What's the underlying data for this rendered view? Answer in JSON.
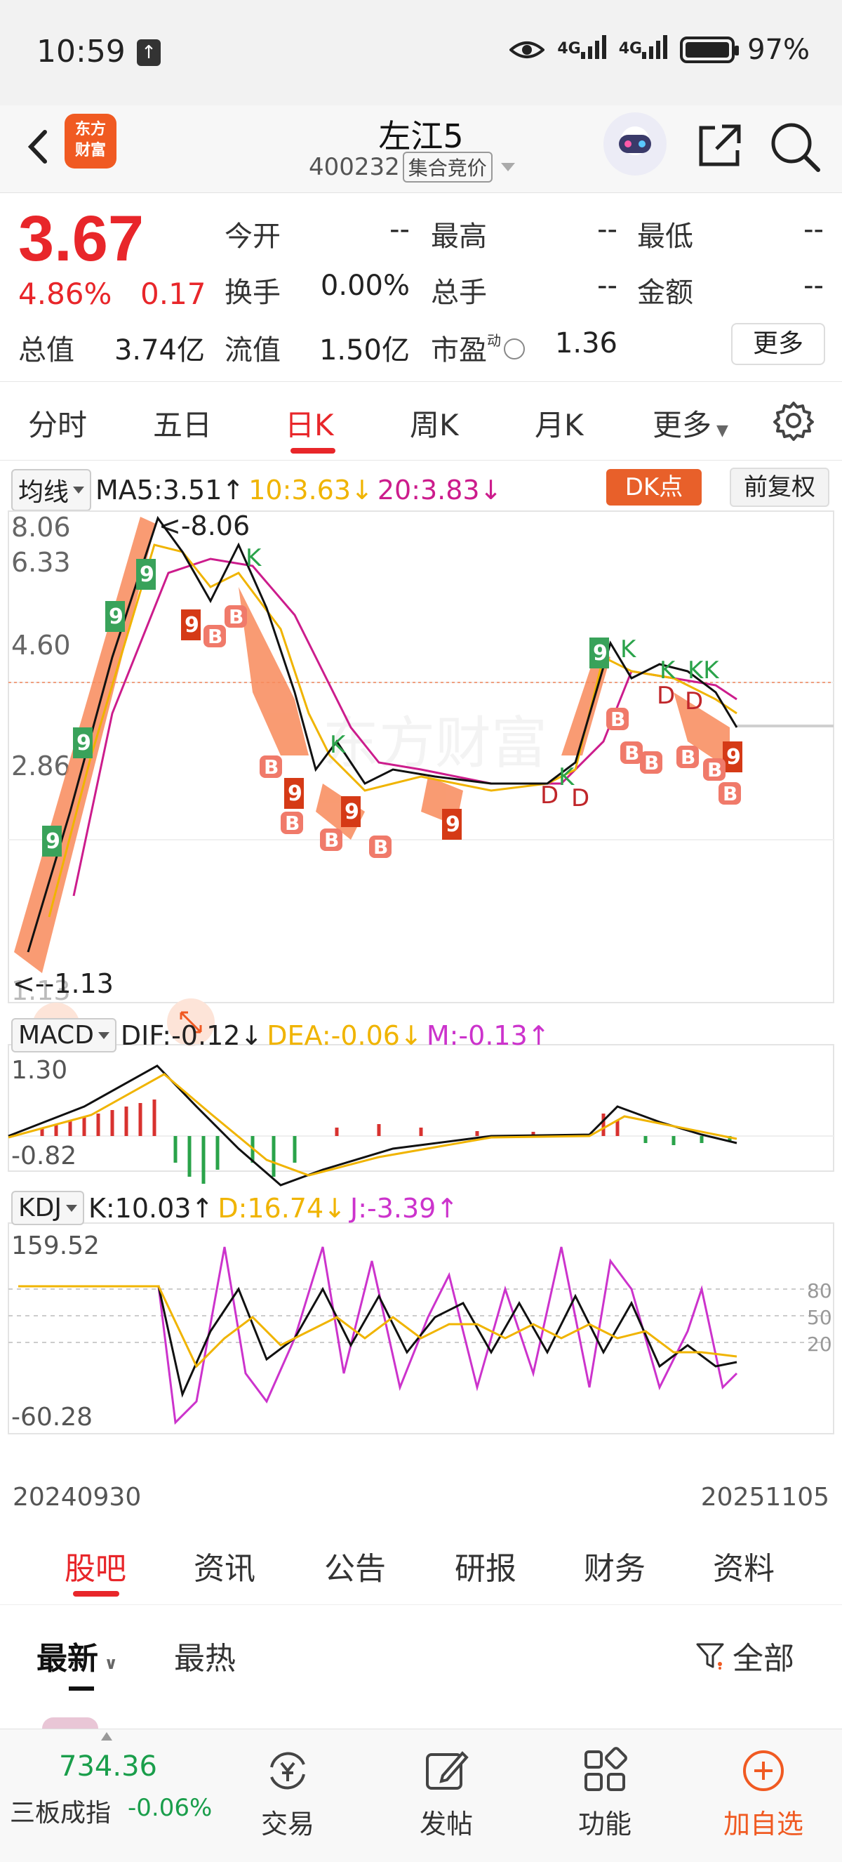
{
  "status_bar": {
    "time": "10:59",
    "battery": "97%",
    "net1": "4G",
    "net2": "4G"
  },
  "header": {
    "stock_name": "左江5",
    "stock_code": "400232",
    "auction_tag": "集合竞价",
    "logo_text_1": "东方",
    "logo_text_2": "财富"
  },
  "quote": {
    "price": "3.67",
    "change_pct": "4.86%",
    "change": "0.17",
    "open_label": "今开",
    "open": "--",
    "high_label": "最高",
    "high": "--",
    "low_label": "最低",
    "low": "--",
    "turnover_label": "换手",
    "turnover": "0.00%",
    "volume_label": "总手",
    "volume": "--",
    "amount_label": "金额",
    "amount": "--",
    "mktcap_label": "总值",
    "mktcap": "3.74亿",
    "float_label": "流值",
    "float": "1.50亿",
    "pe_label": "市盈",
    "pe_sup": "动",
    "pe": "1.36",
    "more": "更多"
  },
  "period_tabs": [
    "分时",
    "五日",
    "日K",
    "周K",
    "月K",
    "更多"
  ],
  "period_active": "日K",
  "kline": {
    "ma_selector": "均线",
    "ma5": "MA5:3.51",
    "ma10": "10:3.63",
    "ma20": "20:3.83",
    "dk_button": "DK点",
    "adjust_button": "前复权",
    "y_labels": [
      "8.06",
      "6.33",
      "4.60",
      "2.86",
      "1.13"
    ],
    "max_marker": "<-8.06",
    "min_marker": "<--1.13",
    "watermark": "东方财富"
  },
  "macd": {
    "selector": "MACD",
    "dif": "DIF:-0.12",
    "dea": "DEA:-0.06",
    "m": "M:-0.13",
    "y_top": "1.30",
    "y_bottom": "-0.82"
  },
  "kdj": {
    "selector": "KDJ",
    "k": "K:10.03",
    "d": "D:16.74",
    "j": "J:-3.39",
    "y_top": "159.52",
    "y_bottom": "-60.28",
    "levels": [
      "80",
      "50",
      "20"
    ]
  },
  "dates": {
    "start": "20240930",
    "end": "20251105"
  },
  "content_tabs": [
    "股吧",
    "资讯",
    "公告",
    "研报",
    "财务",
    "资料"
  ],
  "content_active": "股吧",
  "sub_tabs": {
    "latest": "最新",
    "hot": "最热",
    "filter": "全部"
  },
  "bottom_nav": {
    "index_value": "734.36",
    "index_name": "三板成指",
    "index_change": "-0.06%",
    "items": [
      "交易",
      "发帖",
      "功能",
      "加自选"
    ]
  },
  "colors": {
    "up": "#e8262a",
    "down": "#1a9e4b",
    "accent": "#f05a22",
    "ma10": "#f0b400",
    "ma20": "#cc1c8c"
  }
}
